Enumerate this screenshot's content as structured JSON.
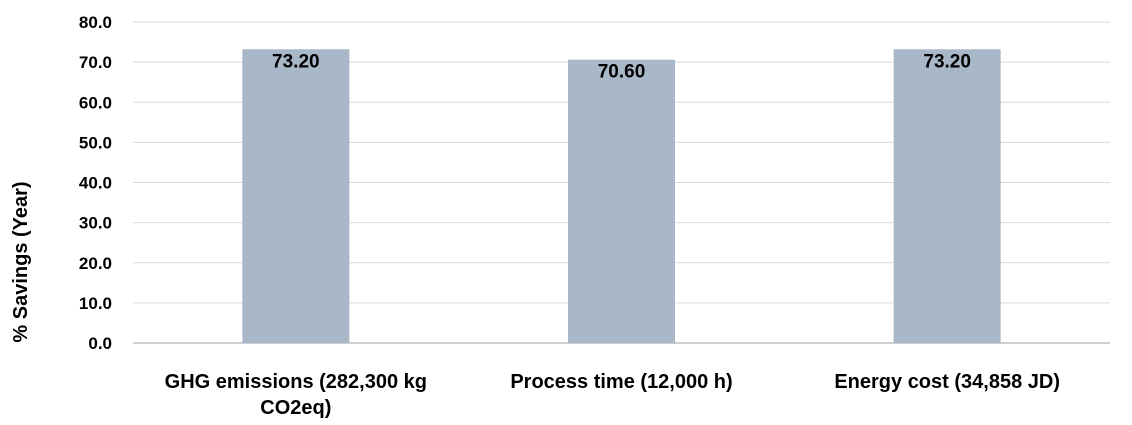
{
  "chart_data": {
    "type": "bar",
    "title": "",
    "xlabel": "",
    "ylabel": "% Savings (Year)",
    "categories": [
      [
        "GHG emissions (282,300 kg",
        "CO2eq)"
      ],
      [
        "Process time (12,000 h)"
      ],
      [
        "Energy cost (34,858 JD)"
      ]
    ],
    "values": [
      73.2,
      70.6,
      73.2
    ],
    "data_labels": [
      "73.20",
      "70.60",
      "73.20"
    ],
    "ylim": [
      0,
      80
    ],
    "yticks": [
      "0.0",
      "10.0",
      "20.0",
      "30.0",
      "40.0",
      "50.0",
      "60.0",
      "70.0",
      "80.0"
    ],
    "grid": true,
    "legend": "none",
    "colors": {
      "bar": "#a9b8c9",
      "grid": "#d9d9d9",
      "axis": "#bfbfbf"
    }
  }
}
